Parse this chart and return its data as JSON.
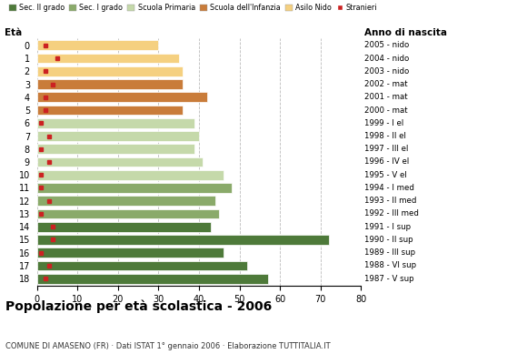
{
  "ages": [
    18,
    17,
    16,
    15,
    14,
    13,
    12,
    11,
    10,
    9,
    8,
    7,
    6,
    5,
    4,
    3,
    2,
    1,
    0
  ],
  "years": [
    "1987 - V sup",
    "1988 - VI sup",
    "1989 - III sup",
    "1990 - II sup",
    "1991 - I sup",
    "1992 - III med",
    "1993 - II med",
    "1994 - I med",
    "1995 - V el",
    "1996 - IV el",
    "1997 - III el",
    "1998 - II el",
    "1999 - I el",
    "2000 - mat",
    "2001 - mat",
    "2002 - mat",
    "2003 - nido",
    "2004 - nido",
    "2005 - nido"
  ],
  "values": [
    57,
    52,
    46,
    72,
    43,
    45,
    44,
    48,
    46,
    41,
    39,
    40,
    39,
    36,
    42,
    36,
    36,
    35,
    30
  ],
  "stranieri": [
    2,
    3,
    1,
    4,
    4,
    1,
    3,
    1,
    1,
    3,
    1,
    3,
    1,
    2,
    2,
    4,
    2,
    5,
    2
  ],
  "bar_colors": {
    "sec2": "#4e7a3a",
    "sec1": "#8aaa6a",
    "primaria": "#c5d9aa",
    "infanzia": "#c97c3a",
    "nido": "#f5d080"
  },
  "age_categories": {
    "sec2": [
      18,
      17,
      16,
      15,
      14
    ],
    "sec1": [
      13,
      12,
      11
    ],
    "primaria": [
      10,
      9,
      8,
      7,
      6
    ],
    "infanzia": [
      5,
      4,
      3
    ],
    "nido": [
      2,
      1,
      0
    ]
  },
  "legend_labels": [
    "Sec. II grado",
    "Sec. I grado",
    "Scuola Primaria",
    "Scuola dell'Infanzia",
    "Asilo Nido",
    "Stranieri"
  ],
  "legend_colors": [
    "#4e7a3a",
    "#8aaa6a",
    "#c5d9aa",
    "#c97c3a",
    "#f5d080",
    "#cc2222"
  ],
  "title": "Popolazione per età scolastica - 2006",
  "subtitle": "COMUNE DI AMASENO (FR) · Dati ISTAT 1° gennaio 2006 · Elaborazione TUTTITALIA.IT",
  "xlabel_eta": "Età",
  "xlabel_anno": "Anno di nascita",
  "xlim": [
    0,
    80
  ],
  "xticks": [
    0,
    10,
    20,
    30,
    40,
    50,
    60,
    70,
    80
  ],
  "background_color": "#ffffff",
  "grid_color": "#bbbbbb",
  "stranieri_color": "#cc2222",
  "bar_height": 0.75
}
